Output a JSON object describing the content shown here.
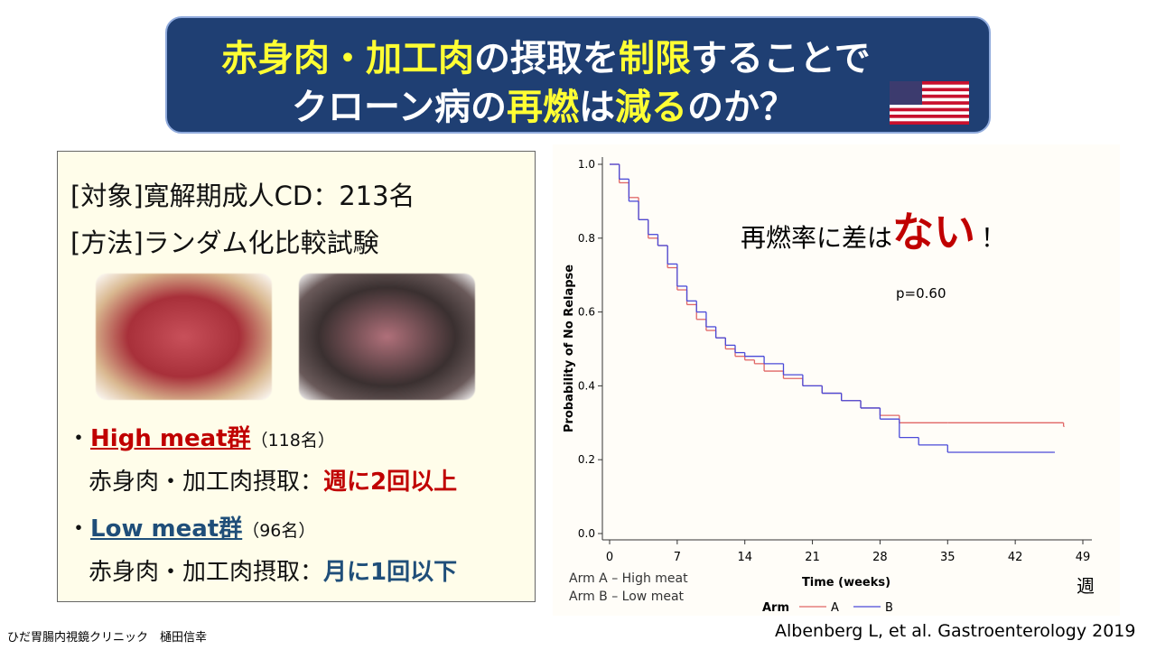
{
  "title": {
    "line1": [
      "赤身肉・加工肉",
      "の摂取を",
      "制限",
      "することで"
    ],
    "line2": [
      "クローン病の",
      "再燃",
      "は",
      "減る",
      "のか？"
    ]
  },
  "study": {
    "subjects": "[対象]寛解期成人CD：213名",
    "method": "[方法]ランダム化比較試験",
    "groups": [
      {
        "bullet": "・",
        "name": "High meat群",
        "count": "（118名）",
        "intake": "赤身肉・加工肉摂取：",
        "frequency": "週に2回以上"
      },
      {
        "bullet": "・",
        "name": "Low meat群",
        "count": "（96名）",
        "intake": "赤身肉・加工肉摂取：",
        "frequency": "月に1回以下"
      }
    ]
  },
  "chart_data": {
    "type": "line",
    "step": true,
    "x_label": "Time (weeks)",
    "y_label": "Probability of No Relapse",
    "x_unit": "週",
    "annotation": {
      "prefix": "再燃率に差は",
      "emphasis": "ない",
      "suffix": "！"
    },
    "p_value": "p=0.60",
    "legend_title": "Arm",
    "arm_descriptions": [
      "Arm A – High meat",
      "Arm B – Low meat"
    ],
    "xlim": [
      0,
      49
    ],
    "xticks": [
      0,
      7,
      14,
      21,
      28,
      35,
      42,
      49
    ],
    "ylim": [
      0,
      1
    ],
    "yticks": [
      {
        "value": 0,
        "label": "0.0"
      },
      0.2,
      0.4,
      0.6,
      0.8,
      {
        "value": 1,
        "label": "1.0"
      }
    ],
    "series": [
      {
        "name": "A",
        "color": "#e06666",
        "x": [
          0,
          1,
          2,
          3,
          4,
          5,
          6,
          7,
          8,
          9,
          10,
          11,
          12,
          13,
          14,
          15,
          16,
          18,
          20,
          22,
          24,
          26,
          28,
          30,
          35,
          47
        ],
        "values": [
          1.0,
          0.95,
          0.91,
          0.85,
          0.8,
          0.78,
          0.72,
          0.66,
          0.62,
          0.58,
          0.55,
          0.53,
          0.5,
          0.48,
          0.47,
          0.46,
          0.44,
          0.42,
          0.4,
          0.38,
          0.36,
          0.34,
          0.32,
          0.3,
          0.3,
          0.29
        ]
      },
      {
        "name": "B",
        "color": "#4a4ad8",
        "x": [
          0,
          1,
          2,
          3,
          4,
          5,
          6,
          7,
          8,
          9,
          10,
          11,
          12,
          13,
          14,
          16,
          18,
          20,
          22,
          24,
          26,
          28,
          30,
          32,
          35,
          46
        ],
        "values": [
          1.0,
          0.96,
          0.9,
          0.85,
          0.81,
          0.78,
          0.73,
          0.67,
          0.63,
          0.6,
          0.56,
          0.53,
          0.51,
          0.49,
          0.48,
          0.46,
          0.43,
          0.4,
          0.38,
          0.36,
          0.34,
          0.31,
          0.26,
          0.24,
          0.22,
          0.22
        ]
      }
    ]
  },
  "footer": {
    "clinic": "ひだ胃腸内視鏡クリニック　樋田信幸",
    "citation": "Albenberg L, et al. Gastroenterology 2019"
  }
}
